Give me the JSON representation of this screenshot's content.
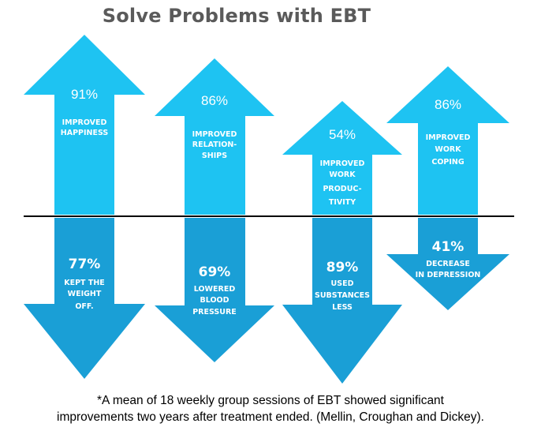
{
  "title": "Solve Problems with EBT",
  "colors": {
    "up": "#1ec3f2",
    "down": "#1a9fd6",
    "line": "#000000"
  },
  "up_arrows": [
    {
      "percent": "91%",
      "label": [
        "IMPROVED",
        "HAPPINESS"
      ]
    },
    {
      "percent": "86%",
      "label": [
        "IMPROVED",
        "RELATION-",
        "SHIPS"
      ]
    },
    {
      "percent": "54%",
      "label": [
        "IMPROVED",
        "WORK",
        "PRODUC-",
        "TIVITY"
      ]
    },
    {
      "percent": "86%",
      "label": [
        "IMPROVED",
        "WORK",
        "COPING"
      ]
    }
  ],
  "down_arrows": [
    {
      "percent": "77%",
      "label": [
        "KEPT THE",
        "WEIGHT",
        "OFF."
      ]
    },
    {
      "percent": "69%",
      "label": [
        "LOWERED",
        "BLOOD",
        "PRESSURE"
      ]
    },
    {
      "percent": "89%",
      "label": [
        "USED",
        "SUBSTANCES",
        "LESS"
      ]
    },
    {
      "percent": "41%",
      "label": [
        "DECREASE",
        "IN DEPRESSION"
      ]
    }
  ],
  "footnote": {
    "line1": "*A mean of 18 weekly group sessions of EBT showed significant",
    "line2": "improvements two years after treatment ended. (Mellin, Croughan and Dickey)."
  }
}
